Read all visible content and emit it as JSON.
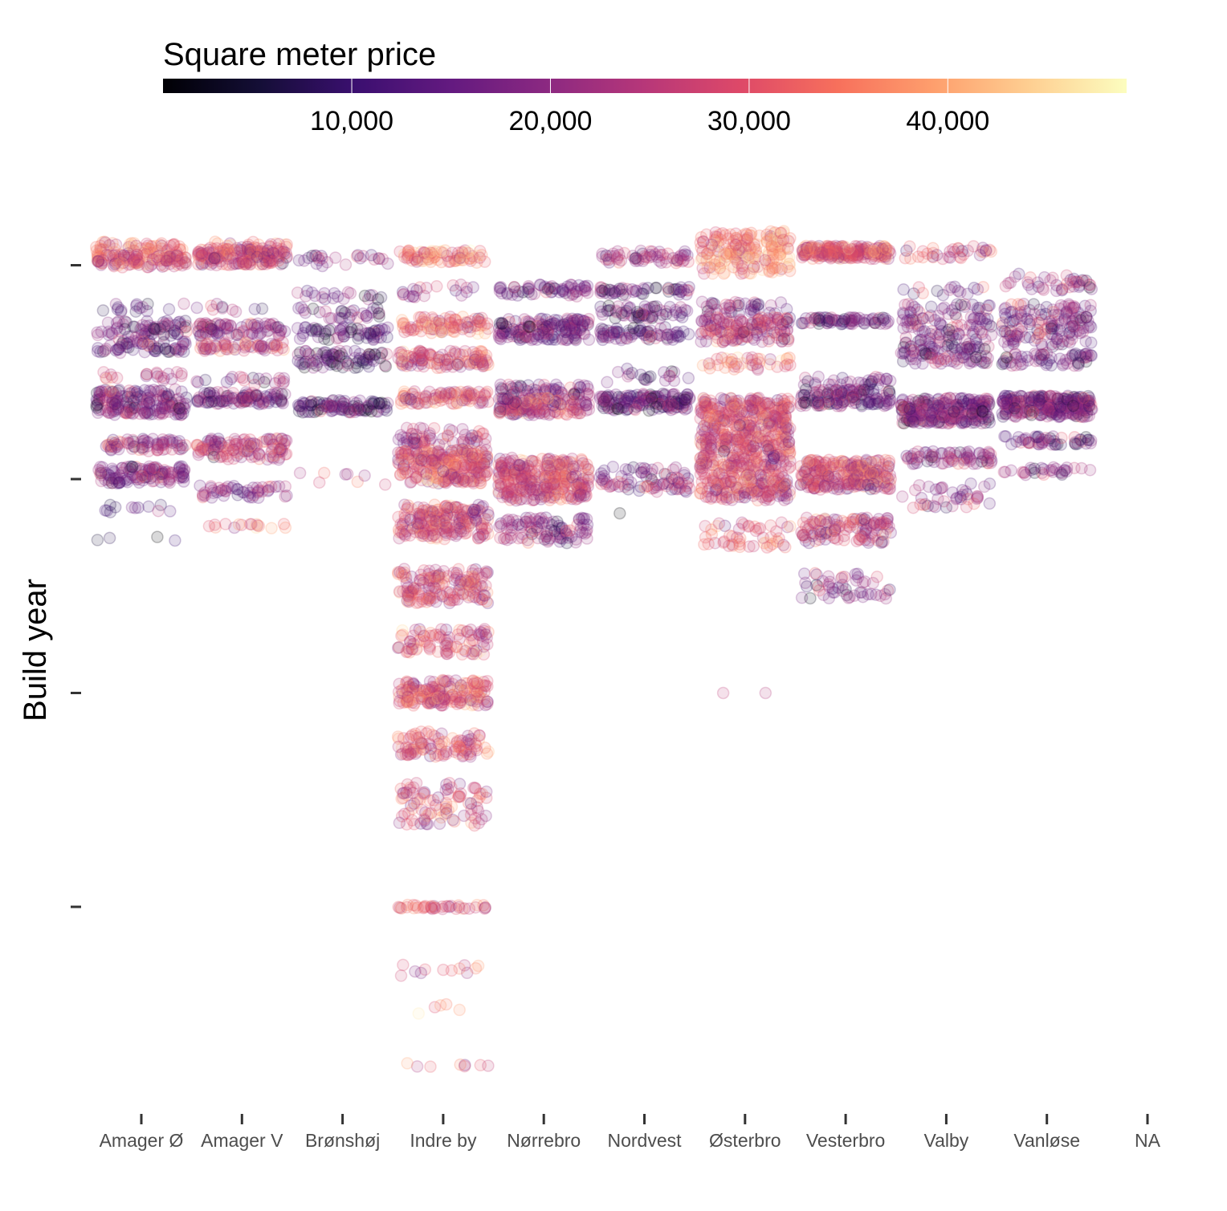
{
  "chart_data": {
    "type": "scatter",
    "title": "",
    "xlabel": "",
    "ylabel": "Build year",
    "legend": {
      "title": "Square meter price",
      "position": "top",
      "type": "colorbar",
      "palette": "magma",
      "range": [
        500,
        49000
      ],
      "ticks": [
        10000,
        20000,
        30000,
        40000
      ],
      "tick_labels": [
        "10,000",
        "20,000",
        "30,000",
        "40,000"
      ]
    },
    "categories": [
      "Amager Ø",
      "Amager V",
      "Brønshøj",
      "Indre by",
      "Nørrebro",
      "Nordvest",
      "Østerbro",
      "Vesterbro",
      "Valby",
      "Vanløse",
      "NA"
    ],
    "y_axis": {
      "ylim": [
        1615,
        2025
      ],
      "ticks": [
        2000,
        1950,
        1900,
        1850
      ],
      "tick_labels": [
        "",
        "",
        "",
        ""
      ],
      "reversed": false
    },
    "point_alpha": 0.15,
    "jitter_width": 0.45,
    "grid": false,
    "clusters": [
      {
        "category": "Amager Ø",
        "bands": [
          {
            "year": 2004,
            "count": 60,
            "spread": 1.5,
            "price": 32000
          },
          {
            "year": 2001,
            "count": 120,
            "spread": 1.5,
            "price": 30000
          },
          {
            "year": 1990,
            "count": 15,
            "spread": 1,
            "price": 15000
          },
          {
            "year": 1985,
            "count": 70,
            "spread": 2,
            "price": 17000
          },
          {
            "year": 1981,
            "count": 60,
            "spread": 1.5,
            "price": 16000
          },
          {
            "year": 1974,
            "count": 20,
            "spread": 1,
            "price": 25000
          },
          {
            "year": 1968,
            "count": 180,
            "spread": 3,
            "price": 18000
          },
          {
            "year": 1958,
            "count": 70,
            "spread": 1.5,
            "price": 22000
          },
          {
            "year": 1951,
            "count": 120,
            "spread": 2,
            "price": 18000
          },
          {
            "year": 1943,
            "count": 12,
            "spread": 1,
            "price": 14000
          },
          {
            "year": 1936,
            "count": 4,
            "spread": 0.5,
            "price": 8000
          }
        ]
      },
      {
        "category": "Amager V",
        "bands": [
          {
            "year": 2004,
            "count": 40,
            "spread": 1.5,
            "price": 30000
          },
          {
            "year": 2002,
            "count": 150,
            "spread": 2,
            "price": 27000
          },
          {
            "year": 1990,
            "count": 10,
            "spread": 1,
            "price": 16000
          },
          {
            "year": 1985,
            "count": 80,
            "spread": 1.5,
            "price": 19000
          },
          {
            "year": 1981,
            "count": 60,
            "spread": 1,
            "price": 27000
          },
          {
            "year": 1973,
            "count": 20,
            "spread": 1,
            "price": 20000
          },
          {
            "year": 1969,
            "count": 100,
            "spread": 1.5,
            "price": 18000
          },
          {
            "year": 1957,
            "count": 120,
            "spread": 2.5,
            "price": 25000
          },
          {
            "year": 1947,
            "count": 50,
            "spread": 1.5,
            "price": 20000
          },
          {
            "year": 1939,
            "count": 16,
            "spread": 0.5,
            "price": 30000
          }
        ]
      },
      {
        "category": "Brønshøj",
        "bands": [
          {
            "year": 2001,
            "count": 25,
            "spread": 1.5,
            "price": 18000
          },
          {
            "year": 1993,
            "count": 20,
            "spread": 1,
            "price": 14000
          },
          {
            "year": 1989,
            "count": 30,
            "spread": 1.5,
            "price": 17000
          },
          {
            "year": 1984,
            "count": 60,
            "spread": 1.5,
            "price": 12000
          },
          {
            "year": 1978,
            "count": 80,
            "spread": 2,
            "price": 13000
          },
          {
            "year": 1967,
            "count": 100,
            "spread": 1.5,
            "price": 12000
          },
          {
            "year": 1950,
            "count": 8,
            "spread": 1.5,
            "price": 18000
          }
        ]
      },
      {
        "category": "Indre by",
        "bands": [
          {
            "year": 2002,
            "count": 80,
            "spread": 1.5,
            "price": 34000
          },
          {
            "year": 1994,
            "count": 20,
            "spread": 1.5,
            "price": 20000
          },
          {
            "year": 1986,
            "count": 90,
            "spread": 2,
            "price": 32000
          },
          {
            "year": 1978,
            "count": 110,
            "spread": 2,
            "price": 30000
          },
          {
            "year": 1969,
            "count": 90,
            "spread": 1.5,
            "price": 30000
          },
          {
            "year": 1960,
            "count": 60,
            "spread": 2,
            "price": 25000
          },
          {
            "year": 1953,
            "count": 250,
            "spread": 4,
            "price": 29000
          },
          {
            "year": 1940,
            "count": 200,
            "spread": 4,
            "price": 28000
          },
          {
            "year": 1925,
            "count": 160,
            "spread": 4,
            "price": 28000
          },
          {
            "year": 1912,
            "count": 90,
            "spread": 3,
            "price": 30000
          },
          {
            "year": 1900,
            "count": 180,
            "spread": 3,
            "price": 30000
          },
          {
            "year": 1888,
            "count": 100,
            "spread": 3,
            "price": 28000
          },
          {
            "year": 1874,
            "count": 90,
            "spread": 5,
            "price": 28000
          },
          {
            "year": 1850,
            "count": 40,
            "spread": 0.5,
            "price": 29000
          },
          {
            "year": 1835,
            "count": 12,
            "spread": 2,
            "price": 28000
          },
          {
            "year": 1826,
            "count": 5,
            "spread": 1.5,
            "price": 33000
          },
          {
            "year": 1813,
            "count": 8,
            "spread": 0.5,
            "price": 27000
          }
        ]
      },
      {
        "category": "Nørrebro",
        "bands": [
          {
            "year": 1994,
            "count": 60,
            "spread": 1.5,
            "price": 16000
          },
          {
            "year": 1985,
            "count": 160,
            "spread": 2.5,
            "price": 17000
          },
          {
            "year": 1971,
            "count": 60,
            "spread": 1.5,
            "price": 18000
          },
          {
            "year": 1967,
            "count": 150,
            "spread": 2,
            "price": 24000
          },
          {
            "year": 1950,
            "count": 300,
            "spread": 5,
            "price": 27000
          },
          {
            "year": 1938,
            "count": 100,
            "spread": 3,
            "price": 20000
          }
        ]
      },
      {
        "category": "Nordvest",
        "bands": [
          {
            "year": 2002,
            "count": 60,
            "spread": 1.5,
            "price": 22000
          },
          {
            "year": 1994,
            "count": 50,
            "spread": 1,
            "price": 15000
          },
          {
            "year": 1989,
            "count": 60,
            "spread": 1.5,
            "price": 15000
          },
          {
            "year": 1984,
            "count": 70,
            "spread": 1.5,
            "price": 14000
          },
          {
            "year": 1974,
            "count": 20,
            "spread": 2,
            "price": 17000
          },
          {
            "year": 1968,
            "count": 150,
            "spread": 2,
            "price": 16000
          },
          {
            "year": 1950,
            "count": 80,
            "spread": 3,
            "price": 20000
          },
          {
            "year": 1942,
            "count": 1,
            "spread": 0,
            "price": 6000
          }
        ]
      },
      {
        "category": "Østerbro",
        "bands": [
          {
            "year": 2003,
            "count": 200,
            "spread": 5,
            "price": 36000
          },
          {
            "year": 1990,
            "count": 40,
            "spread": 1.5,
            "price": 18000
          },
          {
            "year": 1985,
            "count": 150,
            "spread": 3,
            "price": 24000
          },
          {
            "year": 1977,
            "count": 40,
            "spread": 1.5,
            "price": 33000
          },
          {
            "year": 1962,
            "count": 400,
            "spread": 7,
            "price": 28000
          },
          {
            "year": 1950,
            "count": 250,
            "spread": 5,
            "price": 28000
          },
          {
            "year": 1937,
            "count": 50,
            "spread": 3,
            "price": 32000
          },
          {
            "year": 1900,
            "count": 2,
            "spread": 0,
            "price": 25000
          }
        ]
      },
      {
        "category": "Vesterbro",
        "bands": [
          {
            "year": 2003,
            "count": 200,
            "spread": 1.5,
            "price": 30000
          },
          {
            "year": 1987,
            "count": 70,
            "spread": 0.8,
            "price": 14000
          },
          {
            "year": 1973,
            "count": 30,
            "spread": 1,
            "price": 18000
          },
          {
            "year": 1969,
            "count": 130,
            "spread": 2,
            "price": 16000
          },
          {
            "year": 1951,
            "count": 250,
            "spread": 3.5,
            "price": 28000
          },
          {
            "year": 1938,
            "count": 120,
            "spread": 3,
            "price": 25000
          },
          {
            "year": 1925,
            "count": 50,
            "spread": 3,
            "price": 20000
          }
        ]
      },
      {
        "category": "Valby",
        "bands": [
          {
            "year": 2003,
            "count": 35,
            "spread": 1.5,
            "price": 28000
          },
          {
            "year": 1994,
            "count": 15,
            "spread": 1,
            "price": 18000
          },
          {
            "year": 1986,
            "count": 120,
            "spread": 5,
            "price": 17000
          },
          {
            "year": 1979,
            "count": 80,
            "spread": 2,
            "price": 16000
          },
          {
            "year": 1966,
            "count": 250,
            "spread": 3,
            "price": 18000
          },
          {
            "year": 1955,
            "count": 70,
            "spread": 1.5,
            "price": 20000
          },
          {
            "year": 1946,
            "count": 40,
            "spread": 3,
            "price": 17000
          }
        ]
      },
      {
        "category": "Vanløse",
        "bands": [
          {
            "year": 1996,
            "count": 40,
            "spread": 2,
            "price": 20000
          },
          {
            "year": 1986,
            "count": 150,
            "spread": 5,
            "price": 19000
          },
          {
            "year": 1978,
            "count": 60,
            "spread": 1.5,
            "price": 16000
          },
          {
            "year": 1967,
            "count": 250,
            "spread": 2.5,
            "price": 18000
          },
          {
            "year": 1959,
            "count": 50,
            "spread": 1,
            "price": 17000
          },
          {
            "year": 1952,
            "count": 30,
            "spread": 1,
            "price": 18000
          }
        ]
      }
    ]
  }
}
